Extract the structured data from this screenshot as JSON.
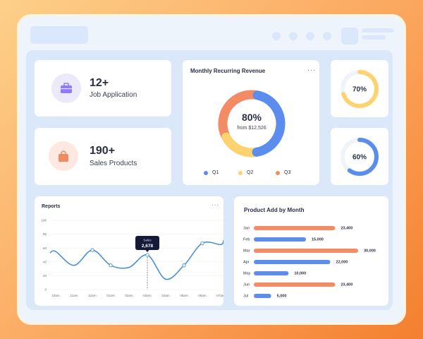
{
  "stats": [
    {
      "value": "12+",
      "label": "Job Application",
      "icon": "briefcase-icon",
      "color": "#8e7bff"
    },
    {
      "value": "190+",
      "label": "Sales Products",
      "icon": "shopping-bag-icon",
      "color": "#f08a63"
    }
  ],
  "revenue": {
    "title": "Monthly Recurring Revenue",
    "menu": "···",
    "percent_label": "80%",
    "subtitle": "from $12,526",
    "legend": [
      {
        "label": "Q1",
        "color": "#5b8def"
      },
      {
        "label": "Q2",
        "color": "#fcd36f"
      },
      {
        "label": "Q3",
        "color": "#f38c65"
      }
    ]
  },
  "rings": [
    {
      "label": "70%",
      "value": 0.7,
      "color": "#fcd36f"
    },
    {
      "label": "60%",
      "value": 0.6,
      "color": "#5b8def"
    }
  ],
  "reports": {
    "title": "Reports",
    "menu": "···",
    "tooltip": {
      "title": "Sales",
      "value": "2,678"
    }
  },
  "product": {
    "title": "Product Add  by Month"
  },
  "chart_data": [
    {
      "type": "pie",
      "title": "Monthly Recurring Revenue",
      "center_label": "80%",
      "center_sublabel": "from $12,526",
      "labels": [
        "Q1",
        "Q2",
        "Q3"
      ],
      "values": [
        45,
        20,
        35
      ],
      "colors": [
        "#5b8def",
        "#fcd36f",
        "#f38c65"
      ]
    },
    {
      "type": "line",
      "title": "Reports",
      "x": [
        "10am",
        "11am",
        "12am",
        "01am",
        "02am",
        "03am",
        "04am",
        "05am",
        "06am",
        "07am"
      ],
      "y": [
        55,
        35,
        57,
        35,
        32,
        50,
        15,
        35,
        67,
        65
      ],
      "yticks": [
        "0",
        "20",
        "40",
        "60",
        "80",
        "100"
      ],
      "ylim": [
        0,
        100
      ],
      "color": "#4a90d9",
      "marked_points": [
        2,
        3,
        5,
        7,
        8
      ],
      "tooltip_index": 5
    },
    {
      "type": "bar",
      "orientation": "horizontal",
      "title": "Product Add  by Month",
      "categories": [
        "Jan",
        "Feb",
        "Mar",
        "Apr",
        "May",
        "Jun",
        "Jul"
      ],
      "values": [
        23400,
        15000,
        30000,
        22000,
        10000,
        23400,
        5000
      ],
      "value_labels": [
        "23,400",
        "15,000",
        "30,000",
        "22,000",
        "10,000",
        "23,400",
        "5,000"
      ],
      "colors": [
        "#f38c65",
        "#5b8def",
        "#f38c65",
        "#5b8def",
        "#5b8def",
        "#f38c65",
        "#5b8def"
      ],
      "xlim": [
        0,
        30000
      ]
    }
  ]
}
